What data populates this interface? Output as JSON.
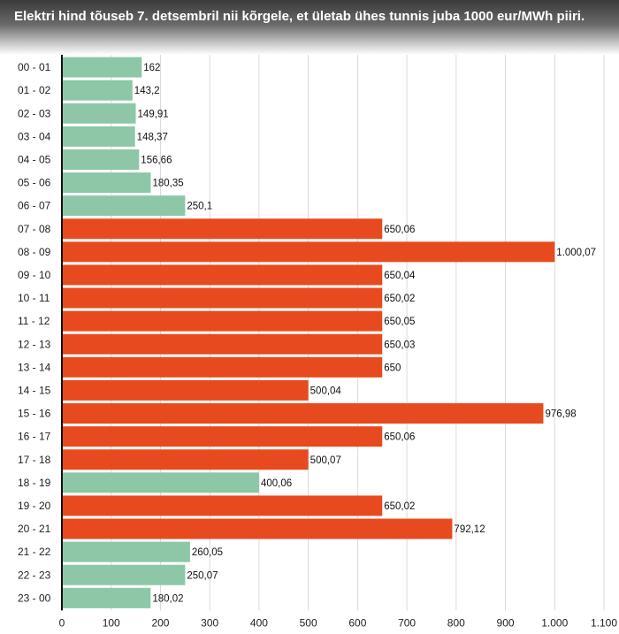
{
  "title": "Elektri hind tõuseb 7. detsembril nii kõrgele, et ületab ühes tunnis juba 1000 eur/MWh piiri.",
  "colors": {
    "low": "#8dc7a7",
    "high": "#e84a1f",
    "grid": "#d9d9d9",
    "axis": "#111111"
  },
  "chart_data": {
    "type": "bar",
    "orientation": "horizontal",
    "title": "Elektri hind tõuseb 7. detsembril nii kõrgele, et ületab ühes tunnis juba 1000 eur/MWh piiri.",
    "categories": [
      "00 - 01",
      "01 - 02",
      "02 - 03",
      "03 - 04",
      "04 - 05",
      "05 - 06",
      "06 - 07",
      "07 - 08",
      "08 - 09",
      "09 - 10",
      "10 - 11",
      "11 - 12",
      "12 - 13",
      "13 - 14",
      "14 - 15",
      "15 - 16",
      "16 - 17",
      "17 - 18",
      "18 - 19",
      "19 - 20",
      "20 - 21",
      "21 - 22",
      "22 - 23",
      "23 - 00"
    ],
    "values": [
      162,
      143.2,
      149.91,
      148.37,
      156.66,
      180.35,
      250.1,
      650.06,
      1000.07,
      650.04,
      650.02,
      650.05,
      650.03,
      650,
      500.04,
      976.98,
      650.06,
      500.07,
      400.06,
      650.02,
      792.12,
      260.05,
      250.07,
      180.02
    ],
    "value_labels": [
      "162",
      "143,2",
      "149,91",
      "148,37",
      "156,66",
      "180,35",
      "250,1",
      "650,06",
      "1.000,07",
      "650,04",
      "650,02",
      "650,05",
      "650,03",
      "650",
      "500,04",
      "976,98",
      "650,06",
      "500,07",
      "400,06",
      "650,02",
      "792,12",
      "260,05",
      "250,07",
      "180,02"
    ],
    "bar_colors": [
      "low",
      "low",
      "low",
      "low",
      "low",
      "low",
      "low",
      "high",
      "high",
      "high",
      "high",
      "high",
      "high",
      "high",
      "high",
      "high",
      "high",
      "high",
      "low",
      "high",
      "high",
      "low",
      "low",
      "low"
    ],
    "xlim": [
      0,
      1100
    ],
    "xticks": [
      0,
      100,
      200,
      300,
      400,
      500,
      600,
      700,
      800,
      900,
      1000,
      1100
    ],
    "xtick_labels": [
      "0",
      "100",
      "200",
      "300",
      "400",
      "500",
      "600",
      "700",
      "800",
      "900",
      "1.000",
      "1.100"
    ],
    "grid": true,
    "xlabel": "",
    "ylabel": ""
  }
}
